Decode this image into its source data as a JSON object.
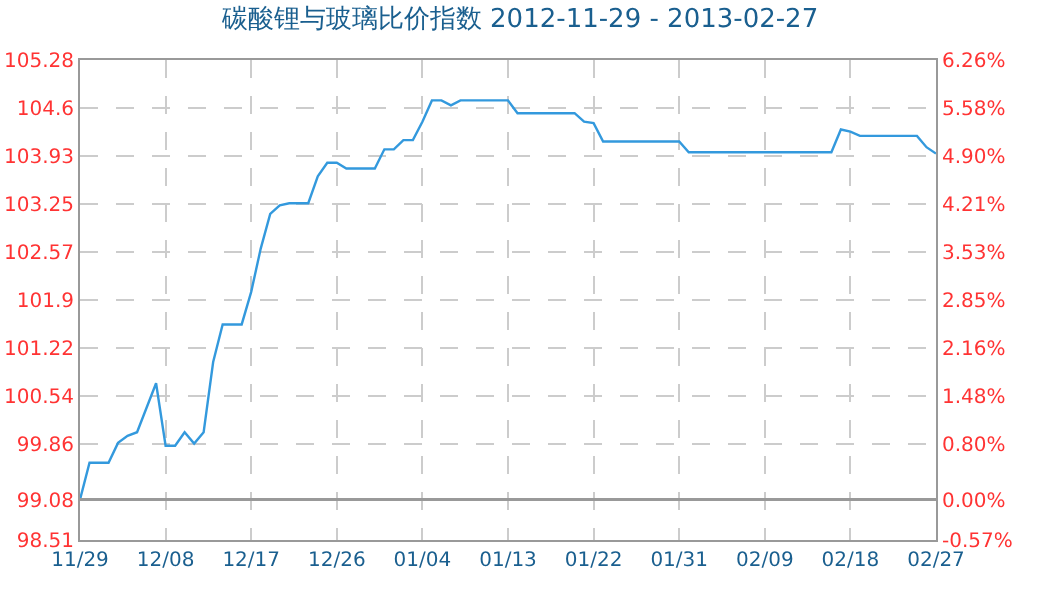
{
  "chart_data": {
    "type": "line",
    "title": "碳酸锂与玻璃比价指数 2012-11-29 - 2013-02-27",
    "x": [
      "2012-11-29",
      "2012-11-30",
      "2012-12-02",
      "2012-12-03",
      "2012-12-04",
      "2012-12-05",
      "2012-12-07",
      "2012-12-08",
      "2012-12-09",
      "2012-12-10",
      "2012-12-11",
      "2012-12-12",
      "2012-12-13",
      "2012-12-14",
      "2012-12-16",
      "2012-12-17",
      "2012-12-18",
      "2012-12-19",
      "2012-12-20",
      "2012-12-21",
      "2012-12-23",
      "2012-12-24",
      "2012-12-25",
      "2012-12-26",
      "2012-12-27",
      "2012-12-30",
      "2012-12-31",
      "2013-01-01",
      "2013-01-02",
      "2013-01-03",
      "2013-01-04",
      "2013-01-05",
      "2013-01-06",
      "2013-01-07",
      "2013-01-08",
      "2013-01-13",
      "2013-01-14",
      "2013-01-20",
      "2013-01-21",
      "2013-01-22",
      "2013-01-23",
      "2013-01-31",
      "2013-02-01",
      "2013-02-16",
      "2013-02-17",
      "2013-02-18",
      "2013-02-19",
      "2013-02-25",
      "2013-02-26",
      "2013-02-27"
    ],
    "series": [
      {
        "color": "#3399dd",
        "values": [
          99.08,
          99.6,
          99.6,
          99.88,
          99.98,
          100.03,
          100.72,
          99.84,
          99.84,
          100.03,
          99.87,
          100.03,
          101.02,
          101.55,
          101.55,
          102.01,
          102.62,
          103.11,
          103.23,
          103.26,
          103.26,
          103.64,
          103.83,
          103.83,
          103.75,
          103.75,
          104.02,
          104.02,
          104.15,
          104.15,
          104.41,
          104.71,
          104.71,
          104.64,
          104.71,
          104.71,
          104.53,
          104.53,
          104.41,
          104.39,
          104.13,
          104.13,
          103.98,
          103.98,
          104.3,
          104.27,
          104.21,
          104.21,
          104.05,
          103.96
        ]
      }
    ],
    "xlim": [
      "2012-11-29",
      "2013-02-27"
    ],
    "xticks": [
      {
        "value": "2012-11-29",
        "label": "11/29"
      },
      {
        "value": "2012-12-08",
        "label": "12/08"
      },
      {
        "value": "2012-12-17",
        "label": "12/17"
      },
      {
        "value": "2012-12-26",
        "label": "12/26"
      },
      {
        "value": "2013-01-04",
        "label": "01/04"
      },
      {
        "value": "2013-01-13",
        "label": "01/13"
      },
      {
        "value": "2013-01-22",
        "label": "01/22"
      },
      {
        "value": "2013-01-31",
        "label": "01/31"
      },
      {
        "value": "2013-02-09",
        "label": "02/09"
      },
      {
        "value": "2013-02-18",
        "label": "02/18"
      },
      {
        "value": "2013-02-27",
        "label": "02/27"
      }
    ],
    "ylim": [
      98.51,
      105.28
    ],
    "yticks": [
      98.51,
      99.08,
      99.86,
      100.54,
      101.22,
      101.9,
      102.57,
      103.25,
      103.93,
      104.6,
      105.28
    ],
    "y2lim": [
      -0.57,
      6.26
    ],
    "y2ticks": [
      {
        "value": -0.57,
        "label": "-0.57%"
      },
      {
        "value": 0,
        "label": "0.00%"
      },
      {
        "value": 0.8,
        "label": "0.80%"
      },
      {
        "value": 1.48,
        "label": "1.48%"
      },
      {
        "value": 2.16,
        "label": "2.16%"
      },
      {
        "value": 2.85,
        "label": "2.85%"
      },
      {
        "value": 3.53,
        "label": "3.53%"
      },
      {
        "value": 4.21,
        "label": "4.21%"
      },
      {
        "value": 4.9,
        "label": "4.90%"
      },
      {
        "value": 5.58,
        "label": "5.58%"
      },
      {
        "value": 6.26,
        "label": "6.26%"
      }
    ],
    "ref_lines": [
      {
        "axis": "y",
        "value": 99.08,
        "color": "#999999"
      }
    ],
    "grid": true,
    "marker": "none",
    "line_style": "solid"
  }
}
